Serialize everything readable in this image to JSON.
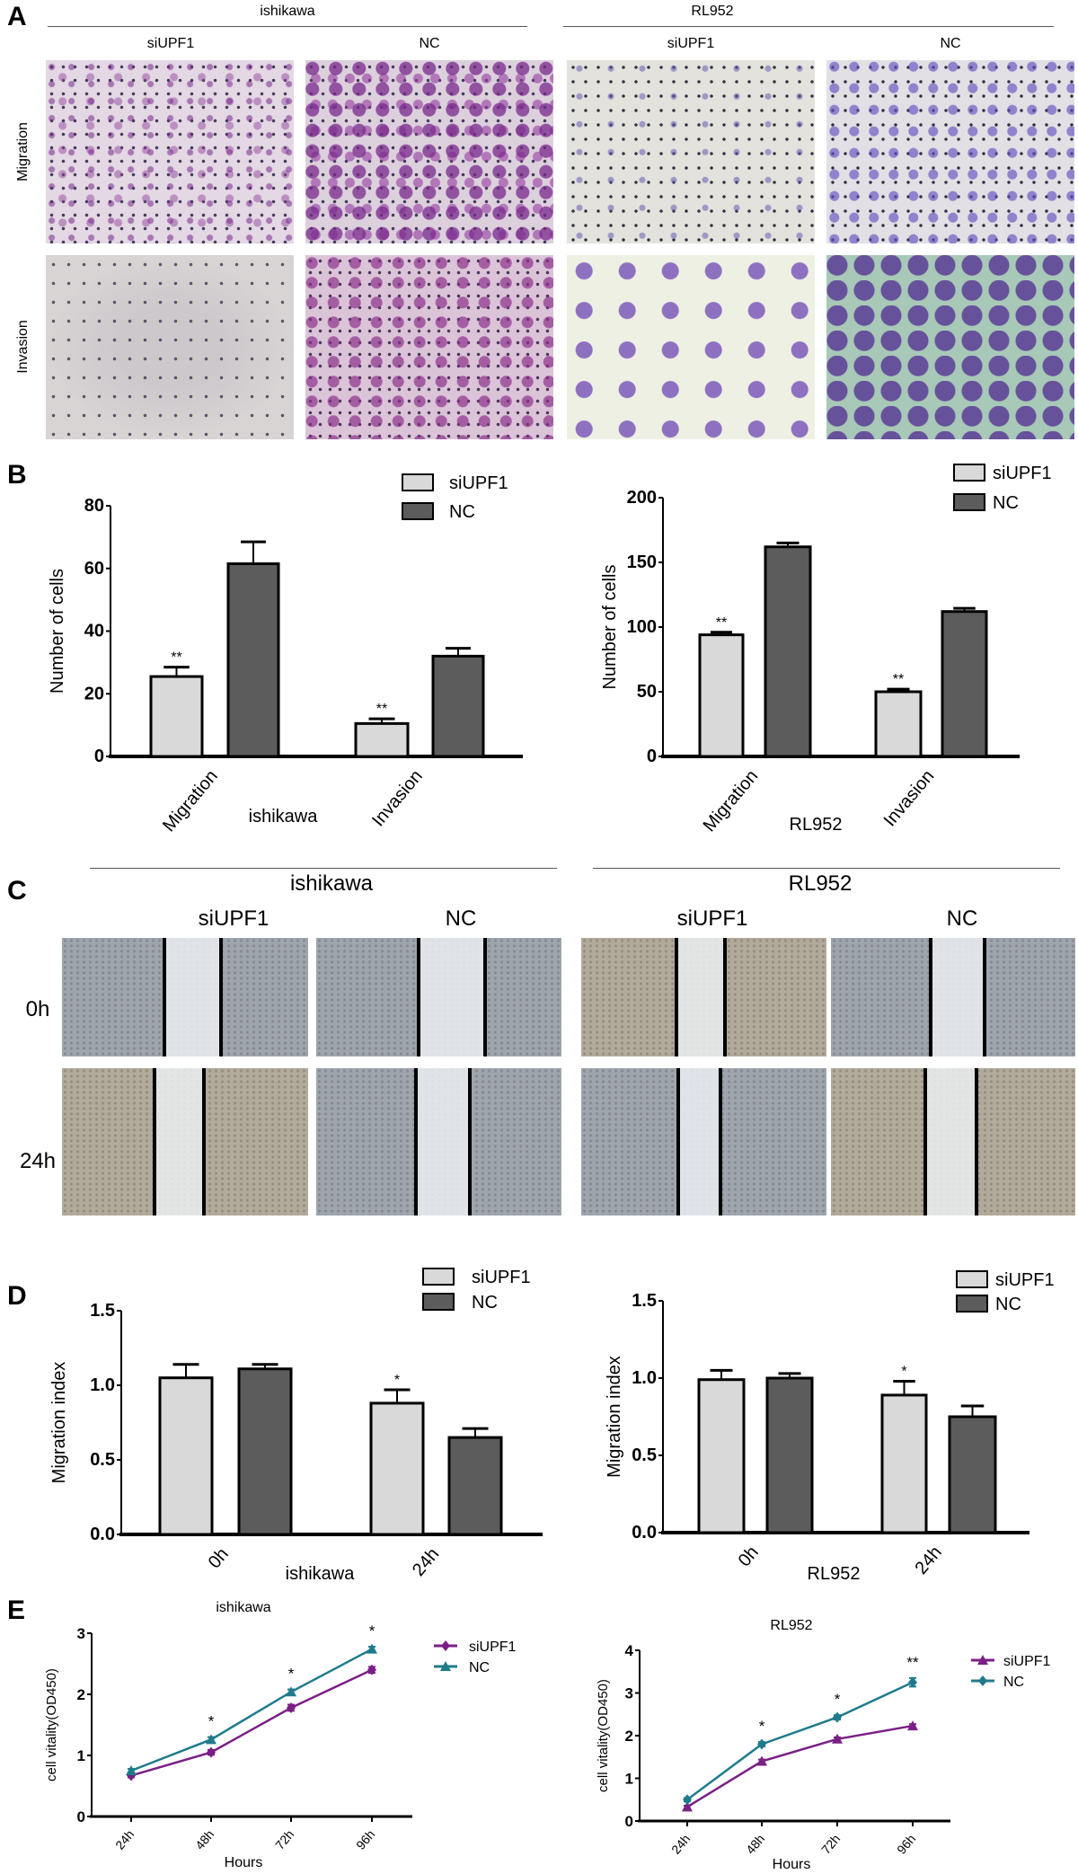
{
  "panels": {
    "a": "A",
    "b": "B",
    "c": "C",
    "d": "D",
    "e": "E"
  },
  "panel_a": {
    "groups": [
      "ishikawa",
      "RL952"
    ],
    "columns": [
      "siUPF1",
      "NC",
      "siUPF1",
      "NC"
    ],
    "rows": [
      "Migration",
      "Invasion"
    ]
  },
  "panel_c": {
    "groups": [
      "ishikawa",
      "RL952"
    ],
    "columns": [
      "siUPF1",
      "NC",
      "siUPF1",
      "NC"
    ],
    "rows": [
      "0h",
      "24h"
    ]
  },
  "colors": {
    "siUPF1_bar": "#d9d9d9",
    "NC_bar": "#5c5c5c",
    "siUPF1_line": "#7b1f86",
    "NC_line": "#1f7b8c"
  },
  "chart_data": [
    {
      "id": "b_ishikawa",
      "type": "bar",
      "categories": [
        "Migration",
        "Invasion"
      ],
      "xlabel": "ishikawa",
      "ylabel": "Number of cells",
      "ylim": [
        0,
        80
      ],
      "yticks": [
        "0",
        "20",
        "40",
        "60",
        "80"
      ],
      "legend": "top-right",
      "series": [
        {
          "name": "siUPF1",
          "values": [
            25.5,
            10.5
          ],
          "errors": [
            3,
            1.5
          ],
          "significance": [
            "**",
            "**"
          ]
        },
        {
          "name": "NC",
          "values": [
            61.5,
            32
          ],
          "errors": [
            7,
            2.5
          ],
          "significance": [
            "",
            ""
          ]
        }
      ]
    },
    {
      "id": "b_rl952",
      "type": "bar",
      "categories": [
        "Migration",
        "Invasion"
      ],
      "xlabel": "RL952",
      "ylabel": "Number of cells",
      "ylim": [
        0,
        200
      ],
      "yticks": [
        "0",
        "50",
        "100",
        "150",
        "200"
      ],
      "legend": "top-right",
      "series": [
        {
          "name": "siUPF1",
          "values": [
            94,
            50
          ],
          "errors": [
            2,
            2
          ],
          "significance": [
            "**",
            "**"
          ]
        },
        {
          "name": "NC",
          "values": [
            162,
            112
          ],
          "errors": [
            3,
            2.5
          ],
          "significance": [
            "",
            ""
          ]
        }
      ]
    },
    {
      "id": "d_ishikawa",
      "type": "bar",
      "categories": [
        "0h",
        "24h"
      ],
      "xlabel": "ishikawa",
      "ylabel": "Migration index",
      "ylim": [
        0,
        1.5
      ],
      "yticks": [
        "0.0",
        "0.5",
        "1.0",
        "1.5"
      ],
      "legend": "top-right",
      "series": [
        {
          "name": "siUPF1",
          "values": [
            1.05,
            0.88
          ],
          "errors": [
            0.09,
            0.09
          ],
          "significance": [
            "",
            "*"
          ]
        },
        {
          "name": "NC",
          "values": [
            1.11,
            0.65
          ],
          "errors": [
            0.03,
            0.06
          ],
          "significance": [
            "",
            ""
          ]
        }
      ]
    },
    {
      "id": "d_rl952",
      "type": "bar",
      "categories": [
        "0h",
        "24h"
      ],
      "xlabel": "RL952",
      "ylabel": "Migration index",
      "ylim": [
        0,
        1.5
      ],
      "yticks": [
        "0.0",
        "0.5",
        "1.0",
        "1.5"
      ],
      "legend": "top-right",
      "series": [
        {
          "name": "siUPF1",
          "values": [
            0.99,
            0.89
          ],
          "errors": [
            0.06,
            0.09
          ],
          "significance": [
            "",
            "*"
          ]
        },
        {
          "name": "NC",
          "values": [
            1.0,
            0.75
          ],
          "errors": [
            0.03,
            0.07
          ],
          "significance": [
            "",
            ""
          ]
        }
      ]
    },
    {
      "id": "e_ishikawa",
      "type": "line",
      "title": "ishikawa",
      "categories": [
        "24h",
        "48h",
        "72h",
        "96h"
      ],
      "xlabel": "Hours",
      "ylabel": "cell vitality(OD450)",
      "ylim": [
        0,
        3
      ],
      "yticks": [
        "0",
        "1",
        "2",
        "3"
      ],
      "legend": "right",
      "series": [
        {
          "name": "siUPF1",
          "marker": "diamond",
          "values": [
            0.67,
            1.05,
            1.78,
            2.4
          ],
          "errors": [
            0.03,
            0.04,
            0.05,
            0.05
          ]
        },
        {
          "name": "NC",
          "marker": "triangle",
          "values": [
            0.75,
            1.26,
            2.04,
            2.74
          ],
          "errors": [
            0.03,
            0.04,
            0.04,
            0.04
          ]
        }
      ],
      "significance": [
        "",
        "*",
        "*",
        "*"
      ]
    },
    {
      "id": "e_rl952",
      "type": "line",
      "title": "RL952",
      "categories": [
        "24h",
        "48h",
        "72h",
        "96h"
      ],
      "xlabel": "Hours",
      "ylabel": "cell vitality(OD450)",
      "ylim": [
        0,
        4
      ],
      "yticks": [
        "0",
        "1",
        "2",
        "3",
        "4"
      ],
      "legend": "right",
      "series": [
        {
          "name": "siUPF1",
          "marker": "triangle",
          "values": [
            0.33,
            1.4,
            1.92,
            2.23
          ],
          "errors": [
            0.03,
            0.04,
            0.04,
            0.04
          ]
        },
        {
          "name": "NC",
          "marker": "diamond",
          "values": [
            0.5,
            1.8,
            2.43,
            3.25
          ],
          "errors": [
            0.04,
            0.05,
            0.05,
            0.1
          ]
        }
      ],
      "significance": [
        "",
        "*",
        "*",
        "**"
      ]
    }
  ]
}
